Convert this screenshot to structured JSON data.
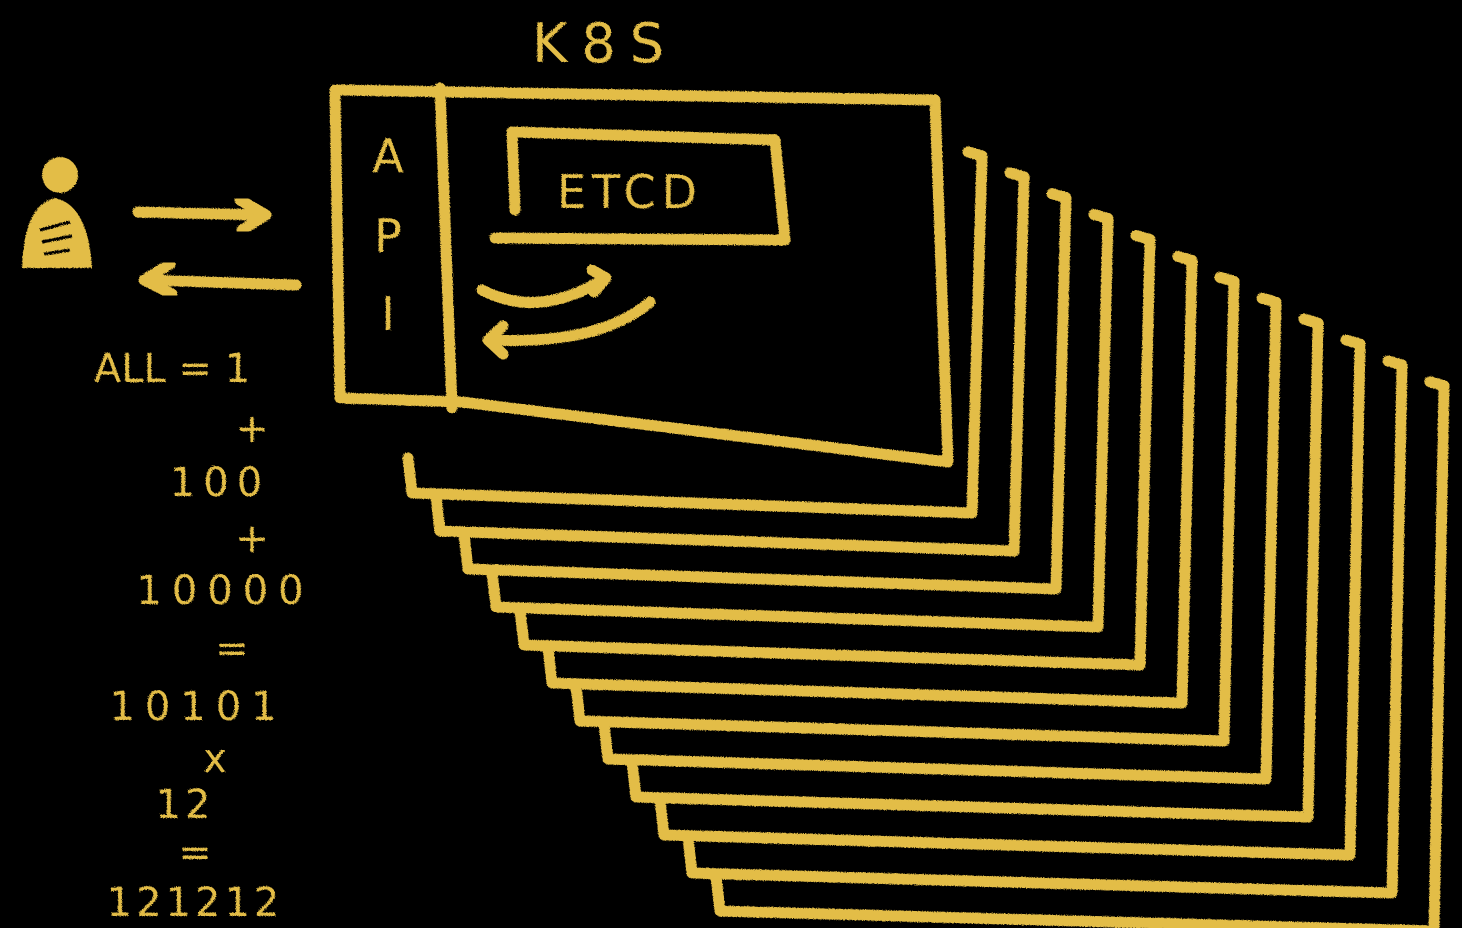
{
  "colors": {
    "background": "#000000",
    "chalk": "#e3bd47"
  },
  "cluster": {
    "title": "K8S",
    "api_letters": [
      "A",
      "P",
      "I"
    ],
    "store_label": "ETCD",
    "stacked_copies": 12
  },
  "user": {
    "icon": "person-icon"
  },
  "calculation": {
    "lines": [
      "ALL = 1",
      "+",
      "100",
      "+",
      "10000",
      "=",
      "10101",
      "x",
      "12",
      "=",
      "121212"
    ]
  }
}
